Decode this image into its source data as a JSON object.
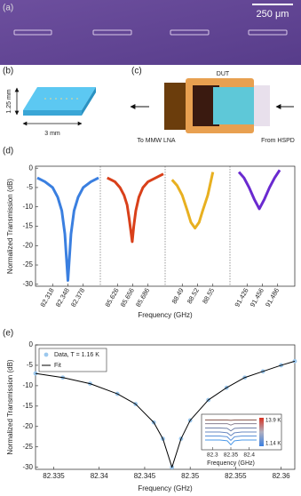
{
  "panels": {
    "a": {
      "label": "(a)",
      "scale_bar": "250 μm"
    },
    "b": {
      "label": "(b)",
      "height": "1.25 mm",
      "width": "3 mm"
    },
    "c": {
      "label": "(c)",
      "dut": "DUT",
      "output": "To MMW LNA",
      "input": "From HSPD"
    }
  },
  "chart_data": [
    {
      "type": "line-panels",
      "label": "(d)",
      "ylabel": "Normalized Transmission (dB)",
      "xlabel": "Frequency (GHz)",
      "ylim": [
        -30.5,
        0.5
      ],
      "yticks": [
        0,
        -5,
        -10,
        -15,
        -20,
        -25,
        -30
      ],
      "panels": [
        {
          "xlim": [
            82.288,
            82.408
          ],
          "xticks": [
            82.318,
            82.348,
            82.378
          ],
          "series": [
            {
              "color": "#3a7fe0",
              "x": [
                82.288,
                82.303,
                82.318,
                82.328,
                82.336,
                82.342,
                82.345,
                82.348,
                82.351,
                82.354,
                82.36,
                82.368,
                82.378,
                82.393,
                82.408
              ],
              "values": [
                -2.5,
                -3.5,
                -5,
                -7.5,
                -11,
                -17,
                -23,
                -29,
                -23,
                -17,
                -11,
                -7.5,
                -5,
                -3.5,
                -2.5
              ]
            }
          ]
        },
        {
          "xlim": [
            85.596,
            85.716
          ],
          "xticks": [
            85.626,
            85.656,
            85.686
          ],
          "series": [
            {
              "color": "#d9401a",
              "x": [
                85.606,
                85.621,
                85.631,
                85.639,
                85.645,
                85.649,
                85.652,
                85.655,
                85.658,
                85.662,
                85.668,
                85.676,
                85.686,
                85.701,
                85.716
              ],
              "values": [
                -2.5,
                -3.5,
                -5,
                -7,
                -9.5,
                -13,
                -16,
                -19,
                -15,
                -11,
                -7.5,
                -5,
                -3.5,
                -2.5,
                -1.5
              ]
            }
          ]
        },
        {
          "xlim": [
            88.46,
            88.58
          ],
          "xticks": [
            88.49,
            88.52,
            88.55
          ],
          "series": [
            {
              "color": "#e8b020",
              "x": [
                88.47,
                88.48,
                88.49,
                88.5,
                88.507,
                88.515,
                88.523,
                88.53,
                88.54,
                88.55
              ],
              "values": [
                -3,
                -4.5,
                -7,
                -11,
                -14,
                -15.5,
                -14,
                -11,
                -7,
                -1
              ]
            }
          ]
        },
        {
          "xlim": [
            91.396,
            91.516
          ],
          "xticks": [
            91.426,
            91.456,
            91.486
          ],
          "series": [
            {
              "color": "#6a2ad0",
              "x": [
                91.41,
                91.42,
                91.43,
                91.44,
                91.45,
                91.46,
                91.47,
                91.48,
                91.49
              ],
              "values": [
                -1,
                -2.5,
                -5,
                -8,
                -10.5,
                -8,
                -5,
                -2.5,
                -0.5
              ]
            }
          ]
        }
      ]
    },
    {
      "type": "line",
      "label": "(e)",
      "ylabel": "Normalized Transmission (dB)",
      "xlabel": "Frequency (GHz)",
      "xlim": [
        82.333,
        82.3615
      ],
      "xticks": [
        82.335,
        82.34,
        82.345,
        82.35,
        82.355,
        82.36
      ],
      "ylim": [
        -30.5,
        0
      ],
      "yticks": [
        0,
        -5,
        -10,
        -15,
        -20,
        -25,
        -30
      ],
      "legend": "upper left",
      "series": [
        {
          "name": "Data, T = 1.16 K",
          "color": "#9cc8ee",
          "style": "markers",
          "x": [
            82.333,
            82.336,
            82.339,
            82.342,
            82.344,
            82.346,
            82.347,
            82.348,
            82.349,
            82.35,
            82.352,
            82.354,
            82.356,
            82.358,
            82.36,
            82.3615
          ],
          "values": [
            -7,
            -8,
            -9.5,
            -12,
            -14.5,
            -19,
            -23,
            -30,
            -23,
            -18.5,
            -13.5,
            -10.5,
            -8,
            -6.5,
            -5,
            -4
          ]
        },
        {
          "name": "Fit",
          "color": "#000000",
          "style": "line",
          "x": [
            82.333,
            82.336,
            82.339,
            82.342,
            82.344,
            82.346,
            82.347,
            82.348,
            82.349,
            82.35,
            82.352,
            82.354,
            82.356,
            82.358,
            82.36,
            82.3615
          ],
          "values": [
            -7,
            -8,
            -9.5,
            -12,
            -14.5,
            -19,
            -23,
            -30,
            -23,
            -18.5,
            -13.5,
            -10.5,
            -8,
            -6.5,
            -5,
            -4
          ]
        }
      ],
      "inset": {
        "xlabel": "Frequency (GHz)",
        "xlim": [
          82.28,
          82.42
        ],
        "xticks": [
          82.3,
          82.35,
          82.4
        ],
        "ylim": [
          -7.2,
          0.6
        ],
        "colorbar_labels": [
          "13.9 K",
          "1.14 K"
        ],
        "x": [
          82.28,
          82.32,
          82.34,
          82.35,
          82.36,
          82.38,
          82.42
        ],
        "curves": [
          {
            "color": "#8a5a50",
            "values": [
              0,
              0,
              0,
              -0.1,
              0,
              0,
              0
            ]
          },
          {
            "color": "#8a8090",
            "values": [
              -1,
              -1,
              -1,
              -1.4,
              -1,
              -1,
              -1
            ]
          },
          {
            "color": "#7080a8",
            "values": [
              -2.2,
              -2.2,
              -2.3,
              -3,
              -2.3,
              -2.2,
              -2.2
            ]
          },
          {
            "color": "#6a88c0",
            "values": [
              -3.3,
              -3.3,
              -3.5,
              -4.3,
              -3.5,
              -3.3,
              -3.3
            ]
          },
          {
            "color": "#5a90d8",
            "values": [
              -4.4,
              -4.4,
              -4.6,
              -5.6,
              -4.6,
              -4.4,
              -4.4
            ]
          },
          {
            "color": "#4a98e8",
            "values": [
              -5.5,
              -5.5,
              -5.7,
              -6.8,
              -5.7,
              -5.5,
              -5.5
            ]
          }
        ]
      }
    }
  ]
}
